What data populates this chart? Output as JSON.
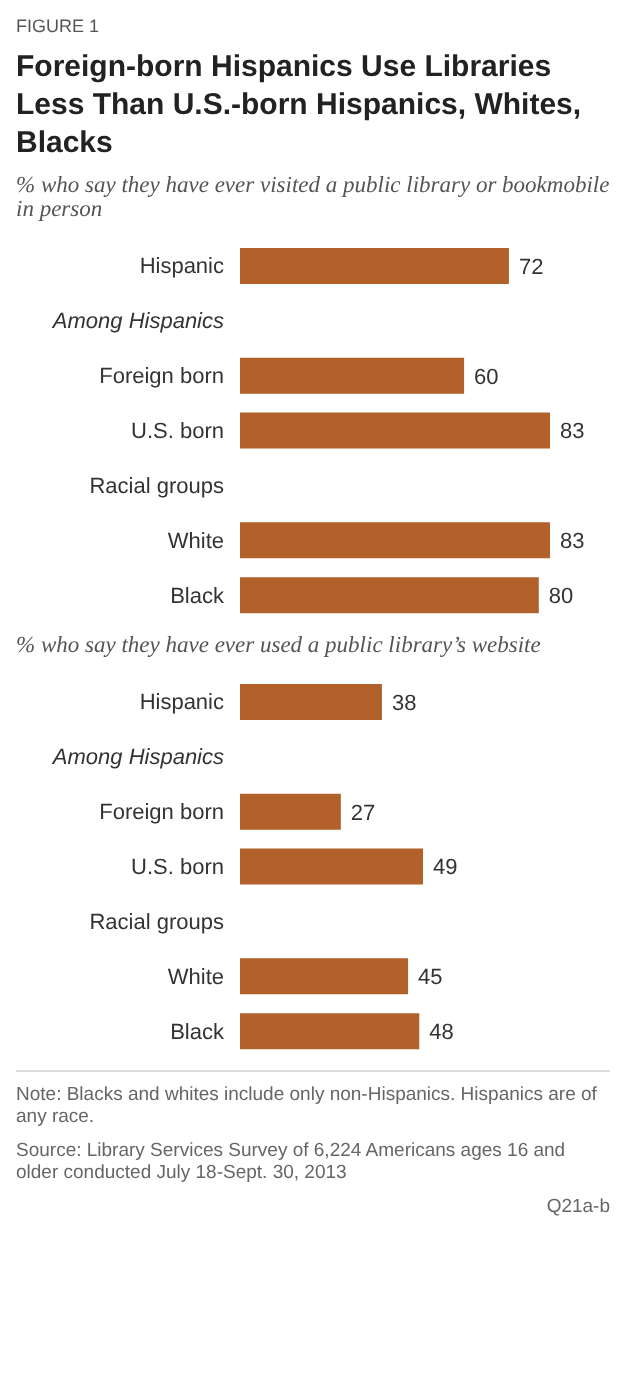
{
  "chart_data": [
    {
      "type": "bar",
      "orientation": "horizontal",
      "title": "Foreign-born  Hispanics Use Libraries Less Than U.S.-born Hispanics, Whites, Blacks",
      "subtitle": "% who say they have ever visited a public library or bookmobile in person",
      "annotations": [
        "FIGURE 1"
      ],
      "categories": [
        "Hispanic",
        "Among Hispanics",
        "Foreign born",
        "U.S. born",
        "Racial groups",
        "White",
        "Black"
      ],
      "values": [
        72,
        null,
        60,
        83,
        null,
        83,
        80
      ],
      "color": "#b3612b",
      "data_labels": true,
      "grid": false,
      "legend": false
    },
    {
      "type": "bar",
      "orientation": "horizontal",
      "subtitle": "% who say they have ever used a public library’s website",
      "annotations": [
        "Note: Blacks and whites include only non-Hispanics. Hispanics are of any race.",
        "Source: Library Services Survey of 6,224 Americans ages 16 and older conducted July 18-Sept. 30, 2013",
        "Q21a-b"
      ],
      "categories": [
        "Hispanic",
        "Among Hispanics",
        "Foreign born",
        "U.S. born",
        "Racial groups",
        "White",
        "Black"
      ],
      "values": [
        38,
        null,
        27,
        49,
        null,
        45,
        48
      ],
      "color": "#b3612b",
      "data_labels": true,
      "grid": false,
      "legend": false
    }
  ]
}
